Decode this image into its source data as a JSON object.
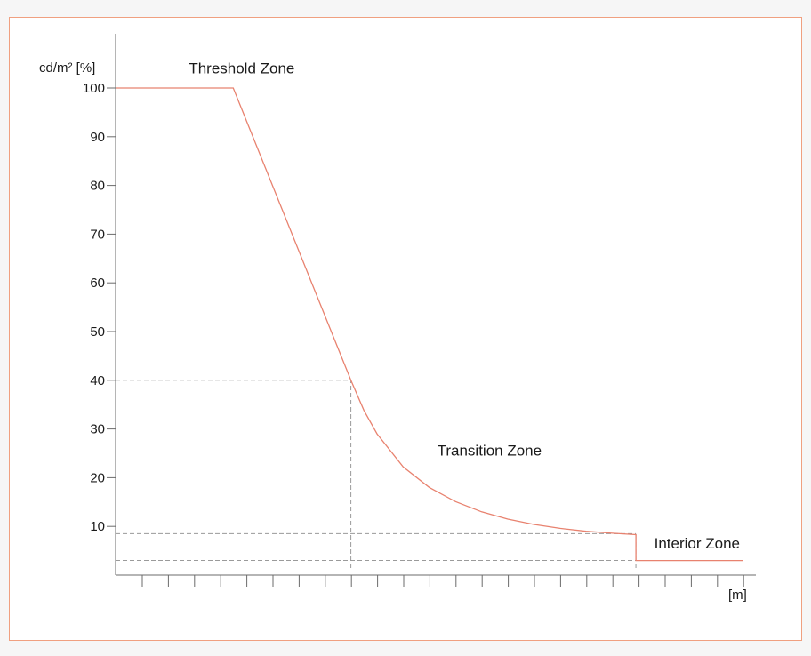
{
  "chart_data": {
    "type": "line",
    "ylabel": "cd/m² [%]",
    "xlabel": "[m]",
    "ylim": [
      0,
      100
    ],
    "y_ticks": [
      10,
      20,
      30,
      40,
      50,
      60,
      70,
      80,
      90,
      100
    ],
    "x_tick_count": 24,
    "grid": false,
    "series": [
      {
        "color": "#e8826f",
        "x": [
          0,
          4.5,
          9,
          9.5,
          10,
          11,
          12,
          13,
          14,
          15,
          16,
          17,
          18,
          19,
          19.9,
          19.9,
          24
        ],
        "y": [
          100,
          100,
          40,
          33.8,
          29.0,
          22.2,
          18.0,
          15.1,
          13.0,
          11.5,
          10.4,
          9.6,
          9.0,
          8.6,
          8.3,
          3,
          3
        ]
      }
    ],
    "reference_lines": [
      {
        "style": "dashed",
        "y": 40,
        "x_from": 0,
        "x_to": 9
      },
      {
        "style": "dashed",
        "x": 9,
        "y_from": 0,
        "y_to": 40
      },
      {
        "style": "dashed",
        "y": 8.5,
        "x_from": 0,
        "x_to": 19.9
      },
      {
        "style": "dashed",
        "y": 3,
        "x_from": 0,
        "x_to": 19.9
      },
      {
        "style": "dashed",
        "x": 19.9,
        "y_from": 0,
        "y_to": 8.5
      }
    ],
    "annotations": [
      {
        "text": "Threshold Zone",
        "x": 2.8,
        "y": 103
      },
      {
        "text": "Transition Zone",
        "x": 12.3,
        "y": 24.5
      },
      {
        "text": "Interior Zone",
        "x": 20.6,
        "y": 5.5
      }
    ]
  }
}
